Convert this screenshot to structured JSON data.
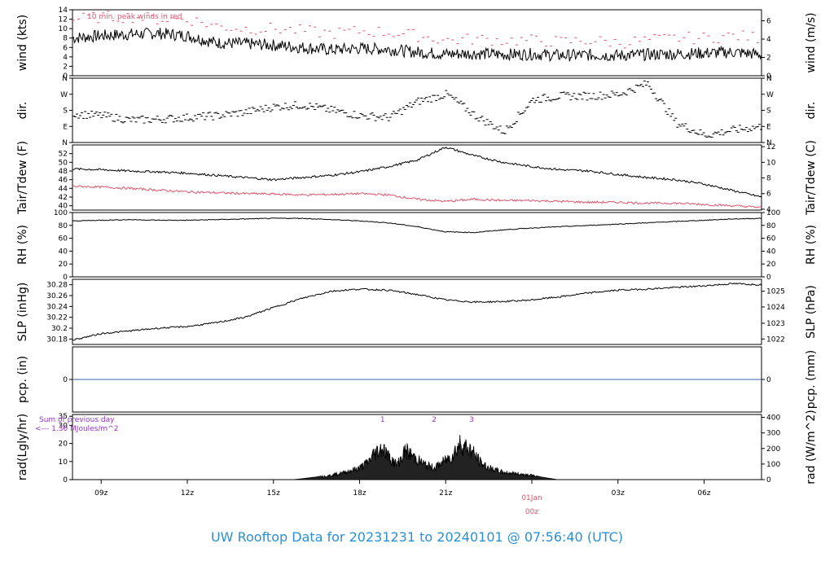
{
  "title": "UW Rooftop Data for 20231231  to  20240101 @ 07:56:40  (UTC)",
  "colors": {
    "primary": "#000000",
    "peak": "#df536b",
    "title": "#2a8fd4",
    "pcp": "#3465a4",
    "rad_note": "#9932cc",
    "date": "#df536b"
  },
  "x_axis": {
    "ticks": [
      "09z",
      "12z",
      "15z",
      "18z",
      "21z",
      "00z",
      "03z",
      "06z"
    ],
    "date_label": "01Jan",
    "date_tick": "00z"
  },
  "chart_data": [
    {
      "id": "wind",
      "type": "line",
      "ylabel_left": "wind (kts)",
      "ylabel_right": "wind (m/s)",
      "ylim": [
        0,
        14
      ],
      "left_ticks": [
        0,
        2,
        4,
        6,
        8,
        10,
        12,
        14
      ],
      "right_ticks": [
        0,
        2,
        4,
        6
      ],
      "right_label_positions_in_left_units": [
        0,
        3.89,
        7.78,
        11.66
      ],
      "annotation": "10 min. peak winds in red",
      "series": [
        {
          "role": "sustained",
          "hours": [
            0,
            1,
            2,
            3,
            4,
            5,
            6,
            7,
            8,
            9,
            10,
            11,
            12,
            13,
            14,
            15,
            16,
            17,
            18,
            19,
            20,
            21,
            22,
            23,
            24
          ],
          "values": [
            8,
            8.5,
            8.8,
            9,
            8.5,
            7,
            6.8,
            6.5,
            6,
            5.5,
            5.8,
            5.6,
            5,
            4.6,
            4.7,
            4.5,
            4.6,
            4.3,
            4.4,
            4.3,
            4.5,
            4.6,
            4.8,
            5,
            4.5
          ]
        },
        {
          "role": "peak",
          "hours": [
            0,
            1,
            2,
            3,
            4,
            5,
            6,
            7,
            8,
            9,
            10,
            11,
            12,
            13,
            14,
            15,
            16,
            17,
            18,
            19,
            20,
            21,
            22,
            23,
            24
          ],
          "values": [
            12,
            12.5,
            12.5,
            12,
            12,
            10.5,
            10,
            10,
            9.5,
            9,
            9.5,
            9.2,
            8.5,
            7.5,
            7.8,
            7.5,
            7.5,
            7.2,
            7.5,
            7,
            7.5,
            8,
            8,
            8.5,
            8
          ]
        }
      ]
    },
    {
      "id": "dir",
      "type": "scatter",
      "ylabel_left": "dir.",
      "ylabel_right": "dir.",
      "left_ticks": [
        "N",
        "E",
        "S",
        "W",
        "N"
      ],
      "ylim": [
        0,
        360
      ],
      "series": [
        {
          "role": "direction",
          "hours": [
            0,
            1,
            2,
            3,
            4,
            5,
            6,
            7,
            8,
            9,
            10,
            11,
            12,
            13,
            14,
            15,
            16,
            17,
            18,
            19,
            20,
            21,
            22,
            23,
            24
          ],
          "values": [
            160,
            150,
            125,
            130,
            140,
            150,
            170,
            200,
            210,
            180,
            150,
            140,
            230,
            270,
            150,
            60,
            240,
            260,
            260,
            270,
            330,
            110,
            40,
            70,
            90
          ]
        }
      ]
    },
    {
      "id": "temp",
      "type": "line",
      "ylabel_left": "Tair/Tdew (F)",
      "ylabel_right": "Tair/Tdew (C)",
      "ylim": [
        39,
        54
      ],
      "left_ticks": [
        40,
        42,
        44,
        46,
        48,
        50,
        52
      ],
      "right_ticks": [
        4,
        6,
        8,
        10,
        12
      ],
      "right_label_positions_in_left_units": [
        39.2,
        42.8,
        46.4,
        50,
        53.6
      ],
      "series": [
        {
          "role": "air",
          "hours": [
            0,
            1,
            2,
            3,
            4,
            5,
            6,
            7,
            8,
            9,
            10,
            11,
            12,
            13,
            14,
            15,
            16,
            17,
            18,
            19,
            20,
            21,
            22,
            23,
            24
          ],
          "values": [
            48.5,
            48.3,
            48,
            47.8,
            47.5,
            47,
            46.5,
            46,
            46.5,
            47,
            47.8,
            49,
            50.5,
            53.5,
            51.5,
            50,
            49,
            48.3,
            48,
            47.2,
            46.5,
            46,
            45,
            43.5,
            42
          ]
        },
        {
          "role": "dew",
          "hours": [
            0,
            1,
            2,
            3,
            4,
            5,
            6,
            7,
            8,
            9,
            10,
            11,
            12,
            13,
            14,
            15,
            16,
            17,
            18,
            19,
            20,
            21,
            22,
            23,
            24
          ],
          "values": [
            44.5,
            44.3,
            44,
            43.6,
            43.2,
            43,
            42.8,
            42.7,
            42.5,
            42.6,
            42.8,
            42.5,
            41.5,
            41,
            41.5,
            41.2,
            41.2,
            41,
            40.8,
            40.8,
            40.6,
            40.6,
            40.3,
            40,
            39.6
          ]
        }
      ]
    },
    {
      "id": "rh",
      "type": "line",
      "ylabel_left": "RH (%)",
      "ylabel_right": "RH (%)",
      "ylim": [
        0,
        100
      ],
      "left_ticks": [
        0,
        20,
        40,
        60,
        80,
        100
      ],
      "right_ticks": [
        0,
        20,
        40,
        60,
        80,
        100
      ],
      "series": [
        {
          "role": "rh",
          "hours": [
            0,
            1,
            2,
            3,
            4,
            5,
            6,
            7,
            8,
            9,
            10,
            11,
            12,
            13,
            14,
            15,
            16,
            17,
            18,
            19,
            20,
            21,
            22,
            23,
            24
          ],
          "values": [
            87,
            88,
            89,
            88,
            88,
            89,
            90,
            91,
            91,
            89,
            87,
            84,
            78,
            70,
            69,
            73,
            76,
            78,
            80,
            82,
            84,
            86,
            88,
            90,
            91
          ]
        }
      ]
    },
    {
      "id": "slp",
      "type": "line",
      "ylabel_left": "SLP (inHg)",
      "ylabel_right": "SLP (hPa)",
      "ylim": [
        30.17,
        30.29
      ],
      "left_ticks": [
        30.18,
        30.2,
        30.22,
        30.24,
        30.26,
        30.28
      ],
      "right_ticks": [
        1022,
        1023,
        1024,
        1025
      ],
      "right_label_positions_in_left_units": [
        30.18,
        30.209,
        30.239,
        30.268
      ],
      "series": [
        {
          "role": "slp",
          "hours": [
            0,
            1,
            2,
            3,
            4,
            5,
            6,
            7,
            8,
            9,
            10,
            11,
            12,
            13,
            14,
            15,
            16,
            17,
            18,
            19,
            20,
            21,
            22,
            23,
            24
          ],
          "values": [
            30.178,
            30.19,
            30.195,
            30.2,
            30.203,
            30.21,
            30.22,
            30.238,
            30.255,
            30.268,
            30.272,
            30.27,
            30.262,
            30.252,
            30.248,
            30.249,
            30.252,
            30.258,
            30.265,
            30.27,
            30.272,
            30.275,
            30.278,
            30.282,
            30.28
          ]
        }
      ]
    },
    {
      "id": "pcp",
      "type": "line",
      "ylabel_left": "pcp. (in)",
      "ylabel_right": "pcp. (mm)",
      "ylim": [
        -1,
        1
      ],
      "left_ticks": [
        0
      ],
      "right_ticks": [
        0
      ],
      "series": [
        {
          "role": "pcp",
          "hours": [
            0,
            24
          ],
          "values": [
            0,
            0
          ]
        }
      ]
    },
    {
      "id": "rad",
      "type": "area",
      "ylabel_left": "rad(Lgly/hr)",
      "ylabel_right": "rad (W/m^2)",
      "ylim": [
        0,
        36
      ],
      "left_ticks": [
        0,
        10,
        20,
        30,
        35
      ],
      "right_ticks": [
        0,
        100,
        200,
        300,
        400
      ],
      "right_label_positions_in_left_units": [
        0,
        8.6,
        17.2,
        25.8,
        34.4
      ],
      "annotation_lines": [
        "Sum of previous day",
        "<--- 1.30 MJoules/m^2"
      ],
      "peak_markers": [
        {
          "label": "1",
          "hour": 10.8
        },
        {
          "label": "2",
          "hour": 12.6
        },
        {
          "label": "3",
          "hour": 13.9
        }
      ],
      "series": [
        {
          "role": "radiation",
          "hours": [
            7.7,
            8,
            8.5,
            9,
            9.5,
            10,
            10.3,
            10.5,
            10.8,
            11,
            11.3,
            11.6,
            12,
            12.3,
            12.6,
            12.9,
            13.2,
            13.5,
            13.9,
            14.2,
            14.5,
            15,
            15.5,
            16,
            16.3,
            16.9
          ],
          "values": [
            0,
            0.5,
            1.5,
            3,
            5,
            8,
            12,
            18,
            22,
            16,
            10,
            20,
            14,
            10,
            8,
            12,
            16,
            25,
            20,
            12,
            8,
            5,
            4,
            3,
            1.5,
            0
          ]
        }
      ]
    }
  ]
}
